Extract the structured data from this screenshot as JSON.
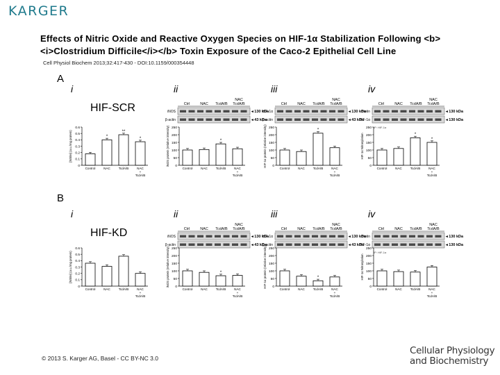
{
  "header": {
    "publisher_logo": "KARGER",
    "title": "Effects of Nitric Oxide and Reactive Oxygen Species on HIF-1α Stabilization Following <b><i>Clostridium Difficile</i></b> Toxin Exposure of the Caco-2 Epithelial Cell Line",
    "citation": "Cell Physiol Biochem 2013;32:417-430 - DOI:10.1159/000354448"
  },
  "footer": {
    "copyright": "© 2013 S. Karger AG, Basel - CC BY-NC 3.0",
    "journal_line1": "Cellular Physiology",
    "journal_line2": "and Biochemistry"
  },
  "panels": {
    "A": {
      "label": "A",
      "group": "HIF-SCR"
    },
    "B": {
      "label": "B",
      "group": "HIF-KD"
    }
  },
  "subpanel_labels": [
    "i",
    "ii",
    "iii",
    "iv"
  ],
  "blot_lanes": [
    "Ctrl",
    "NAC",
    "TcdA/B",
    "NAC\nTcdA/B"
  ],
  "blots": {
    "ii": {
      "rows": [
        "iNOS",
        "β-actin"
      ],
      "markers": [
        "130 kDa",
        "43 kDa"
      ]
    },
    "iii": {
      "rows": [
        "HIF-1α",
        "β-actin"
      ],
      "markers": [
        "130 kDa",
        "43 kDa"
      ]
    },
    "iv": {
      "rows": [
        "Biotin",
        "HIF-1α"
      ],
      "markers": [
        "130 kDa",
        "130 kDa"
      ],
      "note": "IP: HIF-1α"
    }
  },
  "chart_data": [
    {
      "type": "bar",
      "panel": "A-i",
      "categories": [
        "Control",
        "NAC",
        "TcdA/B",
        "NAC\n+\nTcdA/B"
      ],
      "values": [
        0.18,
        0.4,
        0.48,
        0.37
      ],
      "stars": [
        "",
        "*",
        "**",
        "*"
      ],
      "ylabel": "[Nitrite] (a.u./mg protein)",
      "ylim": [
        0,
        0.6
      ],
      "ticks": [
        "0",
        "0.1",
        "0.2",
        "0.3",
        "0.4",
        "0.5",
        "0.6"
      ]
    },
    {
      "type": "bar",
      "panel": "A-ii",
      "categories": [
        "Control",
        "NAC",
        "TcdA/B",
        "NAC\n+\nTcdA/B"
      ],
      "values": [
        100,
        103,
        140,
        108
      ],
      "stars": [
        "",
        "",
        "*",
        ""
      ],
      "ylabel": "iNOS protein (relative intensity)",
      "ylim": [
        0,
        250
      ],
      "ticks": [
        "0",
        "50",
        "100",
        "150",
        "200",
        "250"
      ]
    },
    {
      "type": "bar",
      "panel": "A-iii",
      "categories": [
        "Control",
        "NAC",
        "TcdA/B",
        "NAC\n+\nTcdA/B"
      ],
      "values": [
        100,
        90,
        210,
        115
      ],
      "stars": [
        "",
        "",
        "*",
        ""
      ],
      "ylabel": "HIF-1α protein (relative intensity)",
      "ylim": [
        0,
        250
      ],
      "ticks": [
        "0",
        "50",
        "100",
        "150",
        "200",
        "250"
      ]
    },
    {
      "type": "bar",
      "panel": "A-iv",
      "categories": [
        "Control",
        "NAC",
        "TcdA/B",
        "NAC\n+\nTcdA/B"
      ],
      "values": [
        100,
        110,
        180,
        150
      ],
      "stars": [
        "",
        "",
        "*",
        "*"
      ],
      "ylabel": "HIF-1α Nitrosylation",
      "ylim": [
        0,
        250
      ],
      "ticks": [
        "0",
        "50",
        "100",
        "150",
        "200",
        "250"
      ]
    },
    {
      "type": "bar",
      "panel": "B-i",
      "categories": [
        "Control",
        "NAC",
        "TcdA/B",
        "NAC\n+\nTcdA/B"
      ],
      "values": [
        0.36,
        0.31,
        0.47,
        0.2
      ],
      "stars": [
        "",
        "",
        "",
        ""
      ],
      "ylabel": "[Nitrite] (a.u./mg protein)",
      "ylim": [
        0,
        0.6
      ],
      "ticks": [
        "0",
        "0.1",
        "0.2",
        "0.3",
        "0.4",
        "0.5",
        "0.6"
      ]
    },
    {
      "type": "bar",
      "panel": "B-ii",
      "categories": [
        "Control",
        "NAC",
        "TcdA/B",
        "NAC\n+\nTcdA/B"
      ],
      "values": [
        100,
        90,
        68,
        70
      ],
      "stars": [
        "",
        "",
        "*",
        ""
      ],
      "ylabel": "iNOS protein (relative intensity)",
      "ylim": [
        0,
        250
      ],
      "ticks": [
        "0",
        "50",
        "100",
        "150",
        "200",
        "250"
      ]
    },
    {
      "type": "bar",
      "panel": "B-iii",
      "categories": [
        "Control",
        "NAC",
        "TcdA/B",
        "NAC\n+\nTcdA/B"
      ],
      "values": [
        100,
        65,
        35,
        60
      ],
      "stars": [
        "",
        "",
        "*",
        ""
      ],
      "ylabel": "HIF-1α protein (relative intensity)",
      "ylim": [
        0,
        250
      ],
      "ticks": [
        "0",
        "50",
        "100",
        "150",
        "200",
        "250"
      ]
    },
    {
      "type": "bar",
      "panel": "B-iv",
      "categories": [
        "Control",
        "NAC",
        "TcdA/B",
        "NAC\n+\nTcdA/B"
      ],
      "values": [
        100,
        95,
        92,
        125
      ],
      "stars": [
        "",
        "",
        "",
        ""
      ],
      "ylabel": "HIF-1α Nitrosylation",
      "ylim": [
        0,
        250
      ],
      "ticks": [
        "0",
        "50",
        "100",
        "150",
        "200",
        "250"
      ]
    }
  ]
}
